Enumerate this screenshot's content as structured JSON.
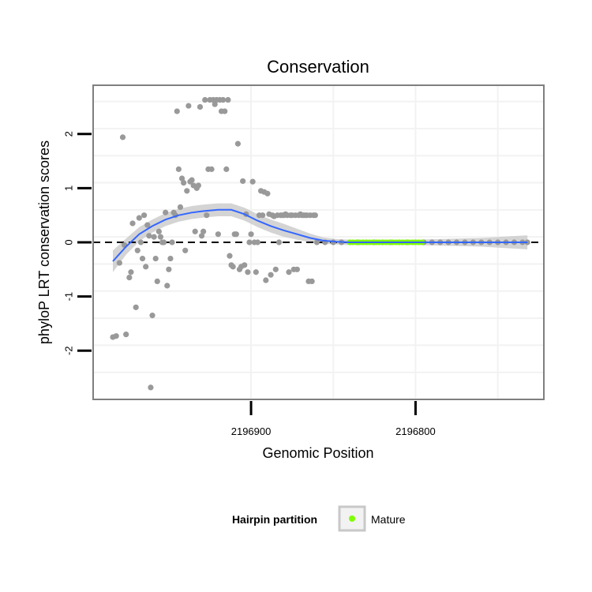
{
  "chart_data": {
    "type": "scatter",
    "title": "Conservation",
    "xlabel": "Genomic Position",
    "ylabel": "phyloP LRT conservation scores",
    "xlim": [
      2196996,
      2196722
    ],
    "ylim": [
      -2.9,
      2.9
    ],
    "x_reversed": true,
    "x_ticks": [
      2196900,
      2196800
    ],
    "x_tick_labels": [
      "2196900",
      "2196800"
    ],
    "y_ticks": [
      -2,
      -1,
      0,
      1,
      2
    ],
    "y_tick_labels": [
      "-2",
      "-1",
      "0",
      "1",
      "2"
    ],
    "grid": true,
    "reference_line": {
      "y": 0,
      "style": "dashed",
      "color": "#000000"
    },
    "series": [
      {
        "name": "points",
        "color": "#999999",
        "points": [
          [
            2196984,
            -1.75
          ],
          [
            2196982,
            -1.73
          ],
          [
            2196980,
            -0.38
          ],
          [
            2196978,
            1.94
          ],
          [
            2196977,
            -0.05
          ],
          [
            2196976,
            -1.7
          ],
          [
            2196974,
            -0.65
          ],
          [
            2196973,
            -0.55
          ],
          [
            2196972,
            0.35
          ],
          [
            2196970,
            -1.2
          ],
          [
            2196969,
            -0.15
          ],
          [
            2196968,
            0.45
          ],
          [
            2196967,
            0.0
          ],
          [
            2196966,
            -0.3
          ],
          [
            2196965,
            0.5
          ],
          [
            2196964,
            -0.45
          ],
          [
            2196963,
            0.32
          ],
          [
            2196962,
            0.12
          ],
          [
            2196961,
            -2.68
          ],
          [
            2196960,
            -1.35
          ],
          [
            2196959,
            0.1
          ],
          [
            2196958,
            -0.3
          ],
          [
            2196957,
            -0.72
          ],
          [
            2196956,
            0.2
          ],
          [
            2196955,
            0.1
          ],
          [
            2196954,
            0.0
          ],
          [
            2196953,
            0.0
          ],
          [
            2196952,
            0.55
          ],
          [
            2196951,
            -0.8
          ],
          [
            2196950,
            -0.5
          ],
          [
            2196949,
            -0.3
          ],
          [
            2196948,
            0.0
          ],
          [
            2196947,
            0.55
          ],
          [
            2196946,
            0.5
          ],
          [
            2196945,
            2.42
          ],
          [
            2196944,
            1.35
          ],
          [
            2196943,
            0.65
          ],
          [
            2196942,
            1.18
          ],
          [
            2196941,
            1.1
          ],
          [
            2196940,
            -0.15
          ],
          [
            2196939,
            0.95
          ],
          [
            2196938,
            2.52
          ],
          [
            2196937,
            1.12
          ],
          [
            2196936,
            1.15
          ],
          [
            2196935,
            1.05
          ],
          [
            2196934,
            0.2
          ],
          [
            2196933,
            1.0
          ],
          [
            2196932,
            1.05
          ],
          [
            2196931,
            2.5
          ],
          [
            2196930,
            0.12
          ],
          [
            2196929,
            0.2
          ],
          [
            2196928,
            2.63
          ],
          [
            2196927,
            0.5
          ],
          [
            2196926,
            1.35
          ],
          [
            2196925,
            2.63
          ],
          [
            2196924,
            1.35
          ],
          [
            2196923,
            2.63
          ],
          [
            2196922,
            2.55
          ],
          [
            2196921,
            2.63
          ],
          [
            2196920,
            0.15
          ],
          [
            2196919,
            2.63
          ],
          [
            2196918,
            2.42
          ],
          [
            2196917,
            2.63
          ],
          [
            2196916,
            2.42
          ],
          [
            2196915,
            1.35
          ],
          [
            2196914,
            2.63
          ],
          [
            2196913,
            -0.25
          ],
          [
            2196912,
            -0.42
          ],
          [
            2196911,
            -0.45
          ],
          [
            2196910,
            0.15
          ],
          [
            2196909,
            0.15
          ],
          [
            2196908,
            1.82
          ],
          [
            2196907,
            -0.5
          ],
          [
            2196906,
            -0.45
          ],
          [
            2196905,
            1.13
          ],
          [
            2196904,
            -0.42
          ],
          [
            2196903,
            0.52
          ],
          [
            2196902,
            -0.55
          ],
          [
            2196901,
            0.0
          ],
          [
            2196900,
            0.15
          ],
          [
            2196899,
            1.12
          ],
          [
            2196898,
            0.0
          ],
          [
            2196897,
            -0.55
          ],
          [
            2196896,
            0.0
          ],
          [
            2196895,
            0.5
          ],
          [
            2196894,
            0.95
          ],
          [
            2196893,
            0.5
          ],
          [
            2196892,
            0.93
          ],
          [
            2196891,
            -0.7
          ],
          [
            2196890,
            0.9
          ],
          [
            2196889,
            0.52
          ],
          [
            2196888,
            -0.6
          ],
          [
            2196887,
            0.5
          ],
          [
            2196886,
            0.48
          ],
          [
            2196885,
            -0.5
          ],
          [
            2196884,
            0.5
          ],
          [
            2196883,
            0.0
          ],
          [
            2196882,
            0.5
          ],
          [
            2196881,
            0.5
          ],
          [
            2196880,
            0.5
          ],
          [
            2196879,
            0.52
          ],
          [
            2196878,
            0.5
          ],
          [
            2196877,
            -0.55
          ],
          [
            2196876,
            0.5
          ],
          [
            2196875,
            0.5
          ],
          [
            2196874,
            -0.5
          ],
          [
            2196873,
            0.5
          ],
          [
            2196872,
            -0.5
          ],
          [
            2196871,
            0.5
          ],
          [
            2196870,
            0.52
          ],
          [
            2196869,
            0.5
          ],
          [
            2196868,
            0.5
          ],
          [
            2196867,
            0.5
          ],
          [
            2196866,
            0.5
          ],
          [
            2196865,
            -0.72
          ],
          [
            2196864,
            0.5
          ],
          [
            2196863,
            -0.72
          ],
          [
            2196862,
            0.5
          ],
          [
            2196861,
            0.5
          ],
          [
            2196860,
            0.0
          ],
          [
            2196855,
            0.0
          ],
          [
            2196850,
            0.0
          ],
          [
            2196845,
            0.0
          ],
          [
            2196840,
            0.0
          ],
          [
            2196835,
            0.0
          ],
          [
            2196830,
            0.0
          ],
          [
            2196825,
            0.0
          ],
          [
            2196820,
            0.0
          ],
          [
            2196815,
            0.0
          ],
          [
            2196810,
            0.0
          ],
          [
            2196805,
            0.0
          ],
          [
            2196800,
            0.0
          ],
          [
            2196795,
            0.0
          ],
          [
            2196790,
            0.0
          ],
          [
            2196785,
            0.0
          ],
          [
            2196780,
            0.0
          ],
          [
            2196775,
            0.0
          ],
          [
            2196770,
            0.0
          ],
          [
            2196765,
            0.0
          ],
          [
            2196760,
            0.0
          ],
          [
            2196755,
            0.0
          ],
          [
            2196750,
            0.0
          ],
          [
            2196745,
            0.0
          ],
          [
            2196740,
            0.0
          ],
          [
            2196735,
            0.0
          ],
          [
            2196732,
            0.0
          ]
        ]
      },
      {
        "name": "Mature",
        "color": "#7fff00",
        "x_range": [
          2196840,
          2196796
        ],
        "y": 0.0
      }
    ],
    "smooth": {
      "color": "#3366ff",
      "band_color": "#cccccc",
      "points": [
        [
          2196984,
          -0.35
        ],
        [
          2196976,
          -0.08
        ],
        [
          2196968,
          0.15
        ],
        [
          2196960,
          0.3
        ],
        [
          2196952,
          0.42
        ],
        [
          2196944,
          0.5
        ],
        [
          2196936,
          0.55
        ],
        [
          2196928,
          0.58
        ],
        [
          2196920,
          0.6
        ],
        [
          2196912,
          0.6
        ],
        [
          2196904,
          0.52
        ],
        [
          2196896,
          0.4
        ],
        [
          2196888,
          0.3
        ],
        [
          2196880,
          0.22
        ],
        [
          2196872,
          0.15
        ],
        [
          2196864,
          0.08
        ],
        [
          2196856,
          0.03
        ],
        [
          2196848,
          0.01
        ],
        [
          2196840,
          0.0
        ],
        [
          2196800,
          0.0
        ],
        [
          2196760,
          0.0
        ],
        [
          2196732,
          0.0
        ]
      ],
      "band": [
        [
          2196984,
          0.2
        ],
        [
          2196976,
          0.15
        ],
        [
          2196968,
          0.13
        ],
        [
          2196960,
          0.12
        ],
        [
          2196952,
          0.12
        ],
        [
          2196944,
          0.12
        ],
        [
          2196936,
          0.12
        ],
        [
          2196928,
          0.12
        ],
        [
          2196920,
          0.12
        ],
        [
          2196912,
          0.12
        ],
        [
          2196904,
          0.12
        ],
        [
          2196896,
          0.12
        ],
        [
          2196888,
          0.12
        ],
        [
          2196880,
          0.12
        ],
        [
          2196872,
          0.1
        ],
        [
          2196864,
          0.08
        ],
        [
          2196856,
          0.06
        ],
        [
          2196848,
          0.05
        ],
        [
          2196840,
          0.05
        ],
        [
          2196800,
          0.05
        ],
        [
          2196760,
          0.08
        ],
        [
          2196732,
          0.13
        ]
      ]
    },
    "legend": {
      "title": "Hairpin partition",
      "entries": [
        {
          "label": "Mature",
          "color": "#7fff00"
        }
      ],
      "position": "bottom"
    }
  }
}
